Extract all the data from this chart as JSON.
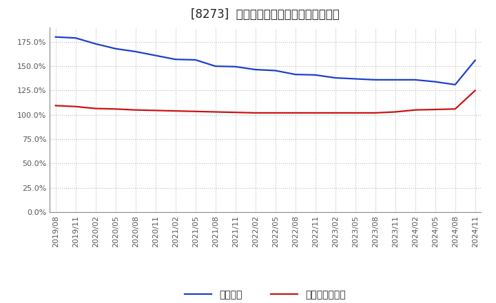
{
  "title": "[8273]  固定比率、固定長期適合率の推移",
  "x_labels": [
    "2019/08",
    "2019/11",
    "2020/02",
    "2020/05",
    "2020/08",
    "2020/11",
    "2021/02",
    "2021/05",
    "2021/08",
    "2021/11",
    "2022/02",
    "2022/05",
    "2022/08",
    "2022/11",
    "2023/02",
    "2023/05",
    "2023/08",
    "2023/11",
    "2024/02",
    "2024/05",
    "2024/08",
    "2024/11"
  ],
  "fixed_ratio": [
    1.8,
    1.79,
    1.73,
    1.68,
    1.65,
    1.61,
    1.57,
    1.565,
    1.5,
    1.495,
    1.465,
    1.455,
    1.415,
    1.41,
    1.38,
    1.37,
    1.36,
    1.36,
    1.36,
    1.34,
    1.31,
    1.56
  ],
  "fixed_long_ratio": [
    1.095,
    1.085,
    1.065,
    1.06,
    1.05,
    1.045,
    1.04,
    1.035,
    1.03,
    1.025,
    1.02,
    1.02,
    1.02,
    1.02,
    1.02,
    1.02,
    1.02,
    1.03,
    1.05,
    1.055,
    1.06,
    1.25
  ],
  "line1_color": "#1a3fcc",
  "line2_color": "#cc1111",
  "ylim": [
    0.0,
    1.9
  ],
  "yticks": [
    0.0,
    0.25,
    0.5,
    0.75,
    1.0,
    1.25,
    1.5,
    1.75
  ],
  "legend1": "固定比率",
  "legend2": "固定長期適合率",
  "bg_color": "#ffffff",
  "grid_color": "#bbbbbb",
  "title_fontsize": 12,
  "tick_fontsize": 8,
  "legend_fontsize": 10
}
